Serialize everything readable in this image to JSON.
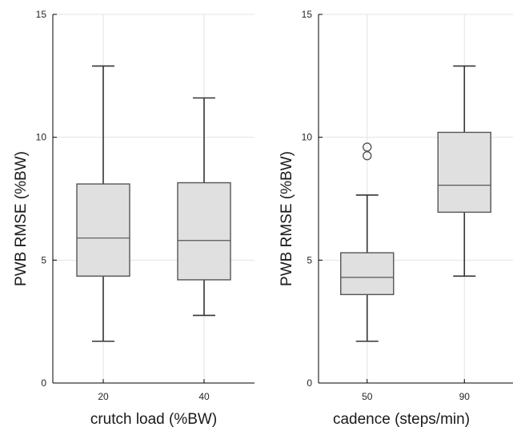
{
  "colors": {
    "box_fill": "#e0e0e0",
    "box_stroke": "#555555",
    "whisker": "#333333",
    "grid": "#e3e3e3",
    "axis": "#000000"
  },
  "chart_data": [
    {
      "type": "box",
      "xlabel": "crutch load (%BW)",
      "ylabel": "PWB RMSE  (%BW)",
      "ylim": [
        0,
        15
      ],
      "yticks": [
        "0",
        "5",
        "10",
        "15"
      ],
      "categories": [
        "20",
        "40"
      ],
      "grid": true,
      "boxes": [
        {
          "category": "20",
          "whisker_low": 1.7,
          "q1": 4.35,
          "median": 5.9,
          "q3": 8.1,
          "whisker_high": 12.9,
          "outliers": []
        },
        {
          "category": "40",
          "whisker_low": 2.75,
          "q1": 4.2,
          "median": 5.8,
          "q3": 8.15,
          "whisker_high": 11.6,
          "outliers": []
        }
      ]
    },
    {
      "type": "box",
      "xlabel": "cadence (steps/min)",
      "ylabel": "PWB RMSE  (%BW)",
      "ylim": [
        0,
        15
      ],
      "yticks": [
        "0",
        "5",
        "10",
        "15"
      ],
      "categories": [
        "50",
        "90"
      ],
      "grid": true,
      "boxes": [
        {
          "category": "50",
          "whisker_low": 1.7,
          "q1": 3.6,
          "median": 4.3,
          "q3": 5.3,
          "whisker_high": 7.65,
          "outliers": [
            9.25,
            9.6
          ]
        },
        {
          "category": "90",
          "whisker_low": 4.35,
          "q1": 6.95,
          "median": 8.05,
          "q3": 10.2,
          "whisker_high": 12.9,
          "outliers": []
        }
      ]
    }
  ]
}
